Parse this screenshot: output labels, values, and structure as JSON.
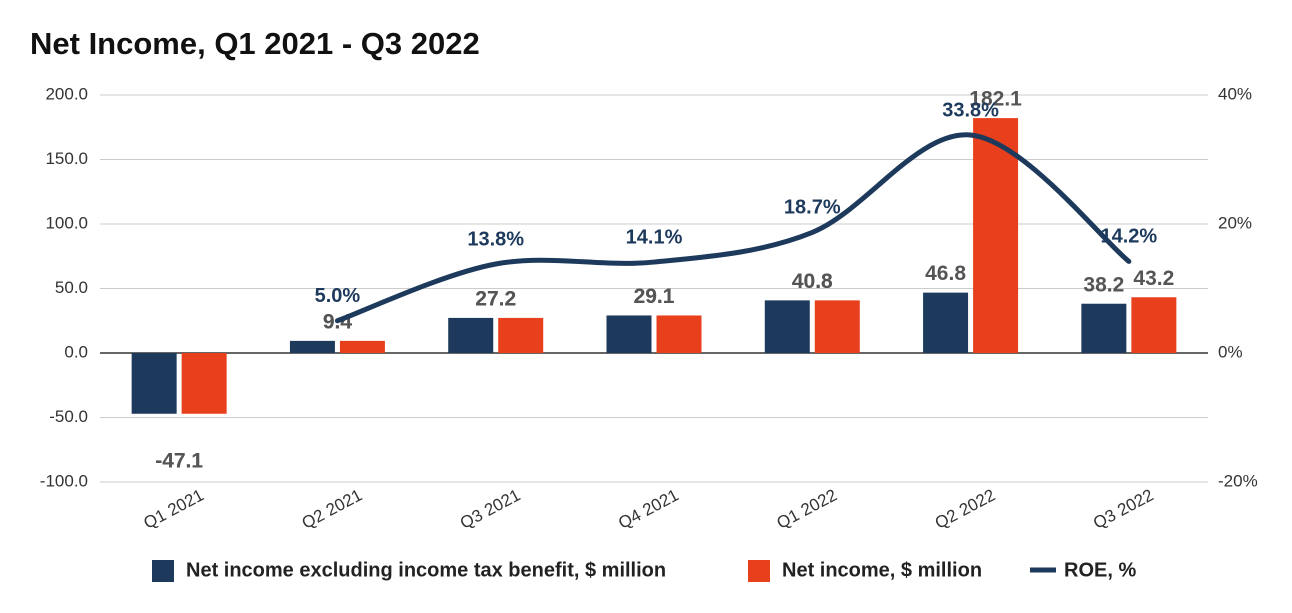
{
  "chart_data": {
    "type": "bar",
    "title": "Net Income, Q1 2021 - Q3 2022",
    "categories": [
      "Q1 2021",
      "Q2 2021",
      "Q3 2021",
      "Q4 2021",
      "Q1 2022",
      "Q2 2022",
      "Q3 2022"
    ],
    "series": [
      {
        "name": "Net income excluding income tax benefit, $ million",
        "color": "#1d3a5c",
        "values": [
          -47.1,
          9.4,
          27.2,
          29.1,
          40.8,
          46.8,
          38.2
        ]
      },
      {
        "name": "Net income, $ million",
        "color": "#e8401c",
        "values": [
          -47.1,
          9.4,
          27.2,
          29.1,
          40.8,
          182.1,
          43.2
        ]
      },
      {
        "name": "ROE, %",
        "color": "#1d3a5c",
        "type": "line",
        "axis": "y2",
        "values": [
          null,
          5.0,
          13.8,
          14.1,
          18.7,
          33.8,
          14.2
        ],
        "value_labels": [
          null,
          "5.0%",
          "13.8%",
          "14.1%",
          "18.7%",
          "33.8%",
          "14.2%"
        ]
      }
    ],
    "ylim": [
      -100,
      200
    ],
    "yticks": [
      {
        "value": -100,
        "label": "-100.0"
      },
      {
        "value": -50,
        "label": "-50.0"
      },
      {
        "value": 0,
        "label": "0.0"
      },
      {
        "value": 50,
        "label": "50.0"
      },
      {
        "value": 100,
        "label": "100.0"
      },
      {
        "value": 150,
        "label": "150.0"
      },
      {
        "value": 200,
        "label": "200.0"
      }
    ],
    "y2lim": [
      -20,
      40
    ],
    "y2ticks": [
      {
        "value": -20,
        "label": "-20%"
      },
      {
        "value": 0,
        "label": "0%"
      },
      {
        "value": 20,
        "label": "20%"
      },
      {
        "value": 40,
        "label": "40%"
      }
    ],
    "grid": true,
    "legend": "bottom"
  }
}
